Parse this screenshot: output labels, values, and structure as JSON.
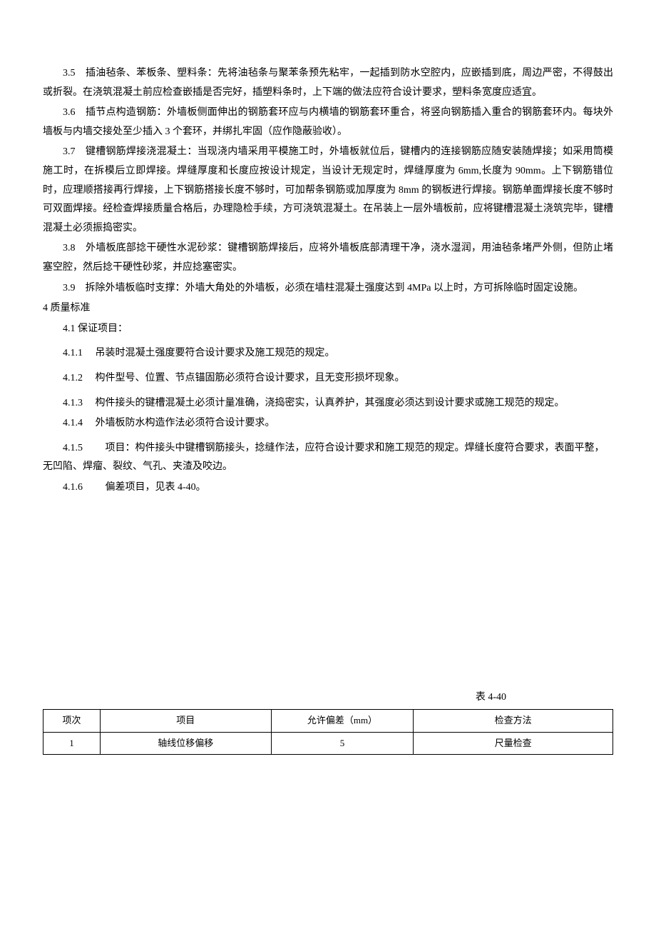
{
  "paragraphs": {
    "p35": "3.5　插油毡条、苯板条、塑料条：先将油毡条与聚苯条预先粘牢，一起插到防水空腔内，应嵌插到底，周边严密，不得鼓出或折裂。在浇筑混凝土前应检查嵌插是否完好，插塑料条时，上下端的做法应符合设计要求，塑料条宽度应适宜。",
    "p36": "3.6　插节点构造钢筋：外墙板侧面伸出的钢筋套环应与内横墙的钢筋套环重合，将竖向钢筋插入重合的钢筋套环内。每块外墙板与内墙交接处至少插入 3 个套环，并绑扎牢固（应作隐蔽验收）。",
    "p37": "3.7　键槽钢筋焊接浇混凝土：当现浇内墙采用平模施工时，外墙板就位后，键槽内的连接钢筋应随安装随焊接；如采用筒模施工时，在拆模后立即焊接。焊缝厚度和长度应按设计规定，当设计无规定时，焊缝厚度为 6mm,长度为 90mm。上下钢筋错位时，应理顺搭接再行焊接，上下钢筋搭接长度不够时，可加帮条钢筋或加厚度为 8mm 的钢板进行焊接。钢筋单面焊接长度不够时可双面焊接。经检查焊接质量合格后，办理隐检手续，方可浇筑混凝土。在吊装上一层外墙板前，应将键槽混凝土浇筑完毕，键槽混凝土必须振捣密实。",
    "p38": "3.8　外墙板底部捻干硬性水泥砂浆：键槽钢筋焊接后，应将外墙板底部清理干净，浇水湿润，用油毡条堵严外侧，但防止堵塞空腔，然后捻干硬性砂浆，并应捻塞密实。",
    "p39": "3.9　拆除外墙板临时支撑：外墙大角处的外墙板，必须在墙柱混凝土强度达到 4MPa 以上时，方可拆除临时固定设施。"
  },
  "heading4": "4 质量标准",
  "s41": "4.1 保证项目：",
  "items": {
    "i411": "4.1.1　  吊装时混凝土强度要符合设计要求及施工规范的规定。",
    "i412": "4.1.2　  构件型号、位置、节点锚固筋必须符合设计要求，且无变形损坏现象。",
    "i413": "4.1.3　  构件接头的键槽混凝土必须计量准确，浇捣密实，认真养护，其强度必须达到设计要求或施工规范的规定。",
    "i414": "4.1.4　  外墙板防水构造作法必须符合设计要求。",
    "i415": "4.1.5　　  项目：构件接头中键槽钢筋接头，捻缝作法，应符合设计要求和施工规范的规定。焊缝长度符合要求，表面平整，无凹陷、焊瘤、裂纹、气孔、夹渣及咬边。",
    "i416": "4.1.6　　  偏差项目，见表 4-40。"
  },
  "table": {
    "label": "表 4-40",
    "headers": {
      "h1": "项次",
      "h2": "项目",
      "h3": "允许偏差（mm）",
      "h4": "检查方法"
    },
    "row1": {
      "c1": "1",
      "c2": "轴线位移偏移",
      "c3": "5",
      "c4": "尺量检查"
    }
  },
  "style": {
    "font_family": "SimSun",
    "font_size_pt": 11,
    "line_height": 1.9,
    "text_color": "#000000",
    "background_color": "#ffffff",
    "border_color": "#000000"
  }
}
